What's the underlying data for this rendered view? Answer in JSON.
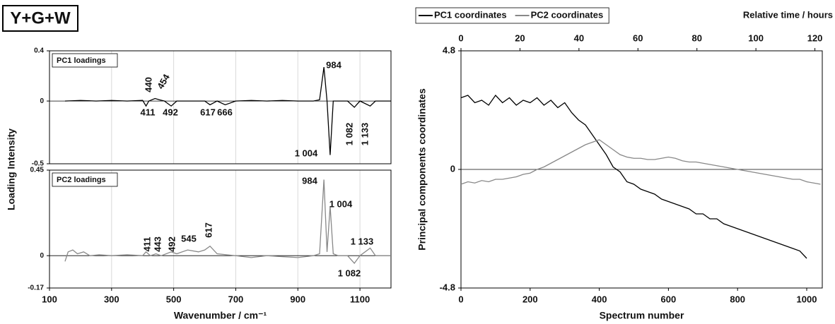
{
  "panel_label": "Y+G+W",
  "chart_data": [
    {
      "type": "line",
      "title": "PC1 loadings",
      "y_label": "Loading Intensity",
      "x": [
        150,
        200,
        250,
        300,
        350,
        400,
        411,
        420,
        440,
        454,
        470,
        492,
        510,
        550,
        600,
        617,
        640,
        666,
        700,
        750,
        800,
        850,
        900,
        950,
        970,
        984,
        994,
        1004,
        1014,
        1030,
        1060,
        1082,
        1100,
        1133,
        1150,
        1200
      ],
      "series": [
        {
          "color": "#000000",
          "values": [
            0.0,
            0.005,
            0.0,
            0.005,
            0.0,
            0.005,
            -0.04,
            0.0,
            0.02,
            0.01,
            0.0,
            -0.04,
            0.0,
            0.0,
            0.0,
            -0.03,
            0.0,
            -0.03,
            0.0,
            0.005,
            0.0,
            0.005,
            0.0,
            0.0,
            0.01,
            0.27,
            0.0,
            -0.43,
            0.0,
            0.0,
            0.0,
            -0.05,
            0.0,
            -0.04,
            0.0,
            0.0
          ]
        }
      ],
      "annotations": [
        "440",
        "454",
        "411",
        "492",
        "617",
        "666",
        "984",
        "1 004",
        "1 082",
        "1 133"
      ],
      "xlim": [
        100,
        1200
      ],
      "xticks": [
        100,
        300,
        500,
        700,
        900,
        1100
      ],
      "ylim": [
        -0.5,
        0.4
      ],
      "yticks": [
        -0.5,
        0,
        0.4
      ],
      "grid": true
    },
    {
      "type": "line",
      "title": "PC2 loadings",
      "x_label": "Wavenumber / cm⁻¹",
      "x": [
        150,
        160,
        175,
        190,
        210,
        230,
        260,
        300,
        350,
        400,
        411,
        425,
        443,
        460,
        492,
        510,
        545,
        580,
        600,
        617,
        640,
        700,
        750,
        800,
        850,
        900,
        950,
        970,
        984,
        994,
        1004,
        1014,
        1030,
        1060,
        1082,
        1100,
        1133,
        1150,
        1200
      ],
      "series": [
        {
          "color": "#888888",
          "values": [
            -0.03,
            0.02,
            0.03,
            0.01,
            0.02,
            0.0,
            0.005,
            0.0,
            0.005,
            0.0,
            0.02,
            0.0,
            0.01,
            0.0,
            0.02,
            0.01,
            0.03,
            0.02,
            0.03,
            0.05,
            0.01,
            0.0,
            -0.01,
            0.0,
            -0.005,
            -0.01,
            0.0,
            0.01,
            0.4,
            0.02,
            0.26,
            0.01,
            0.0,
            0.0,
            -0.04,
            0.0,
            0.04,
            0.0,
            0.0
          ]
        }
      ],
      "annotations": [
        "411",
        "443",
        "492",
        "545",
        "617",
        "984",
        "1 004",
        "1 133",
        "1 082"
      ],
      "xlim": [
        100,
        1200
      ],
      "xticks": [
        100,
        300,
        500,
        700,
        900,
        1100
      ],
      "ylim": [
        -0.17,
        0.45
      ],
      "yticks": [
        -0.17,
        0,
        0.45
      ],
      "grid": true
    },
    {
      "type": "line",
      "x_label": "Spectrum number",
      "y_label": "Principal components coordinates",
      "x2_label": "Relative time / hours",
      "legend": "top-left",
      "xlim": [
        0,
        1045
      ],
      "xticks": [
        0,
        200,
        400,
        600,
        800,
        1000
      ],
      "x2lim": [
        0,
        122.5
      ],
      "x2ticks": [
        0,
        20,
        40,
        60,
        80,
        100,
        120
      ],
      "ylim": [
        -4.8,
        4.8
      ],
      "yticks": [
        -4.8,
        0,
        4.8
      ],
      "series": [
        {
          "name": "PC1 coordinates",
          "color": "#000000",
          "x": [
            0,
            20,
            40,
            60,
            80,
            100,
            120,
            140,
            160,
            180,
            200,
            220,
            240,
            260,
            280,
            300,
            320,
            340,
            360,
            380,
            400,
            420,
            440,
            460,
            480,
            500,
            520,
            540,
            560,
            580,
            600,
            620,
            640,
            660,
            680,
            700,
            720,
            740,
            760,
            780,
            800,
            820,
            840,
            860,
            880,
            900,
            920,
            940,
            960,
            980,
            1000
          ],
          "values": [
            2.9,
            3.0,
            2.7,
            2.8,
            2.6,
            3.0,
            2.7,
            2.9,
            2.6,
            2.8,
            2.7,
            2.9,
            2.6,
            2.8,
            2.5,
            2.7,
            2.3,
            2.0,
            1.8,
            1.4,
            1.0,
            0.6,
            0.1,
            -0.1,
            -0.5,
            -0.6,
            -0.8,
            -0.9,
            -1.0,
            -1.2,
            -1.3,
            -1.4,
            -1.5,
            -1.6,
            -1.8,
            -1.8,
            -2.0,
            -2.0,
            -2.2,
            -2.3,
            -2.4,
            -2.5,
            -2.6,
            -2.7,
            -2.8,
            -2.9,
            -3.0,
            -3.1,
            -3.2,
            -3.3,
            -3.6
          ]
        },
        {
          "name": "PC2 coordinates",
          "color": "#888888",
          "x": [
            0,
            20,
            40,
            60,
            80,
            100,
            120,
            140,
            160,
            180,
            200,
            220,
            240,
            260,
            280,
            300,
            320,
            340,
            360,
            380,
            400,
            420,
            440,
            460,
            480,
            500,
            520,
            540,
            560,
            580,
            600,
            620,
            640,
            660,
            680,
            700,
            720,
            740,
            760,
            780,
            800,
            820,
            840,
            860,
            880,
            900,
            920,
            940,
            960,
            980,
            1000,
            1020,
            1040
          ],
          "values": [
            -0.6,
            -0.5,
            -0.55,
            -0.45,
            -0.5,
            -0.4,
            -0.4,
            -0.35,
            -0.3,
            -0.2,
            -0.15,
            0.0,
            0.1,
            0.25,
            0.4,
            0.55,
            0.7,
            0.85,
            1.0,
            1.1,
            1.2,
            1.0,
            0.8,
            0.6,
            0.5,
            0.45,
            0.45,
            0.4,
            0.4,
            0.45,
            0.5,
            0.45,
            0.35,
            0.3,
            0.3,
            0.25,
            0.2,
            0.15,
            0.1,
            0.05,
            0.0,
            -0.05,
            -0.1,
            -0.15,
            -0.2,
            -0.25,
            -0.3,
            -0.35,
            -0.4,
            -0.4,
            -0.5,
            -0.55,
            -0.6
          ]
        }
      ]
    }
  ]
}
